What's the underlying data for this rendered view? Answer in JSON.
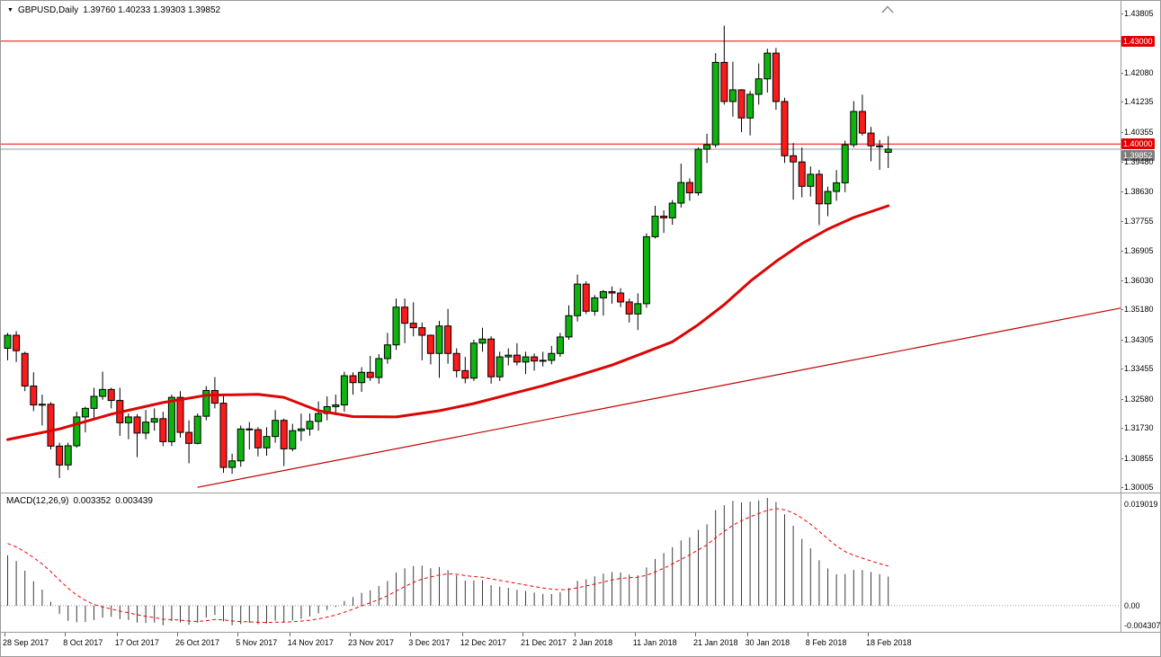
{
  "window": {
    "title_symbol": "GBPUSD,Daily",
    "title_ohlc": "1.39760 1.40233 1.39303 1.39852"
  },
  "colors": {
    "up": "#0eb30e",
    "down": "#fb1b1b",
    "wick": "#000000",
    "ma": "#dd0404",
    "trend": "#c00000",
    "level": "#f40000",
    "bid_line": "#9b9b9b",
    "hist": "#3a3a3a",
    "signal": "#f40000",
    "level_label_bg": "#e00000",
    "bid_label_bg": "#7d7d7d"
  },
  "price_axis": {
    "labels": [
      {
        "text": "1.43805",
        "type": "plain"
      },
      {
        "text": "1.43000",
        "type": "level"
      },
      {
        "text": "1.42080",
        "type": "plain"
      },
      {
        "text": "1.41235",
        "type": "plain"
      },
      {
        "text": "1.40355",
        "type": "plain"
      },
      {
        "text": "1.40000",
        "type": "level"
      },
      {
        "text": "1.39852",
        "type": "bid"
      },
      {
        "text": "1.39480",
        "type": "plain"
      },
      {
        "text": "1.38630",
        "type": "plain"
      },
      {
        "text": "1.37755",
        "type": "plain"
      },
      {
        "text": "1.36905",
        "type": "plain"
      },
      {
        "text": "1.36030",
        "type": "plain"
      },
      {
        "text": "1.35180",
        "type": "plain"
      },
      {
        "text": "1.34305",
        "type": "plain"
      },
      {
        "text": "1.33455",
        "type": "plain"
      },
      {
        "text": "1.32580",
        "type": "plain"
      },
      {
        "text": "1.31730",
        "type": "plain"
      },
      {
        "text": "1.30855",
        "type": "plain"
      },
      {
        "text": "1.30005",
        "type": "plain"
      }
    ]
  },
  "time_axis": {
    "labels": [
      {
        "text": "28 Sep 2017",
        "index": 0
      },
      {
        "text": "8 Oct 2017",
        "index": 7
      },
      {
        "text": "17 Oct 2017",
        "index": 13
      },
      {
        "text": "26 Oct 2017",
        "index": 20
      },
      {
        "text": "5 Nov 2017",
        "index": 27
      },
      {
        "text": "14 Nov 2017",
        "index": 33
      },
      {
        "text": "23 Nov 2017",
        "index": 40
      },
      {
        "text": "3 Dec 2017",
        "index": 47
      },
      {
        "text": "12 Dec 2017",
        "index": 53
      },
      {
        "text": "21 Dec 2017",
        "index": 60
      },
      {
        "text": "2 Jan 2018",
        "index": 66
      },
      {
        "text": "11 Jan 2018",
        "index": 73
      },
      {
        "text": "21 Jan 2018",
        "index": 80
      },
      {
        "text": "30 Jan 2018",
        "index": 86
      },
      {
        "text": "8 Feb 2018",
        "index": 93
      },
      {
        "text": "18 Feb 2018",
        "index": 100
      }
    ]
  },
  "macd": {
    "label": "MACD(12,26,9)",
    "value_main": "0.003352",
    "value_signal": "0.003439",
    "axis_max": "0.019019",
    "axis_zero": "0.00",
    "axis_min": "-0.004307"
  },
  "chart_data": {
    "type": "candlestick",
    "symbol": "GBPUSD",
    "timeframe": "Daily",
    "title": "GBPUSD,Daily 1.39760 1.40233 1.39303 1.39852",
    "price_range": [
      1.30005,
      1.43805
    ],
    "levels": [
      1.43,
      1.4
    ],
    "bid": 1.39852,
    "last_ohlc": {
      "open": 1.3976,
      "high": 1.40233,
      "low": 1.39303,
      "close": 1.39852
    },
    "candles": [
      [
        1.3405,
        1.345,
        1.337,
        1.3443
      ],
      [
        1.3443,
        1.3455,
        1.3365,
        1.3398
      ],
      [
        1.339,
        1.3395,
        1.328,
        1.3295
      ],
      [
        1.3295,
        1.3335,
        1.3222,
        1.324
      ],
      [
        1.324,
        1.327,
        1.318,
        1.3242
      ],
      [
        1.3242,
        1.3248,
        1.311,
        1.312
      ],
      [
        1.312,
        1.313,
        1.3027,
        1.3065
      ],
      [
        1.3065,
        1.313,
        1.305,
        1.3121
      ],
      [
        1.3121,
        1.322,
        1.3115,
        1.3205
      ],
      [
        1.3205,
        1.3235,
        1.316,
        1.323
      ],
      [
        1.323,
        1.329,
        1.32,
        1.3265
      ],
      [
        1.3265,
        1.3337,
        1.3255,
        1.3285
      ],
      [
        1.3285,
        1.329,
        1.323,
        1.3253
      ],
      [
        1.3253,
        1.329,
        1.315,
        1.3188
      ],
      [
        1.3188,
        1.3215,
        1.314,
        1.3205
      ],
      [
        1.3205,
        1.3213,
        1.3088,
        1.3158
      ],
      [
        1.3158,
        1.3225,
        1.314,
        1.319
      ],
      [
        1.319,
        1.323,
        1.3165,
        1.32
      ],
      [
        1.32,
        1.322,
        1.312,
        1.3133
      ],
      [
        1.3133,
        1.327,
        1.312,
        1.3262
      ],
      [
        1.3262,
        1.328,
        1.3145,
        1.316
      ],
      [
        1.316,
        1.3195,
        1.307,
        1.3128
      ],
      [
        1.3128,
        1.3215,
        1.3125,
        1.3207
      ],
      [
        1.3207,
        1.3295,
        1.3195,
        1.3282
      ],
      [
        1.3282,
        1.3321,
        1.323,
        1.3245
      ],
      [
        1.3245,
        1.327,
        1.3042,
        1.3058
      ],
      [
        1.3058,
        1.3098,
        1.3039,
        1.3077
      ],
      [
        1.3077,
        1.318,
        1.306,
        1.317
      ],
      [
        1.317,
        1.319,
        1.311,
        1.3168
      ],
      [
        1.3168,
        1.3175,
        1.309,
        1.3115
      ],
      [
        1.3115,
        1.3175,
        1.3092,
        1.3148
      ],
      [
        1.3148,
        1.3225,
        1.313,
        1.3195
      ],
      [
        1.3195,
        1.32,
        1.3062,
        1.3112
      ],
      [
        1.3112,
        1.3185,
        1.3105,
        1.3165
      ],
      [
        1.3165,
        1.3215,
        1.3135,
        1.317
      ],
      [
        1.317,
        1.3215,
        1.315,
        1.3192
      ],
      [
        1.3192,
        1.325,
        1.3165,
        1.3215
      ],
      [
        1.3215,
        1.3265,
        1.3195,
        1.3235
      ],
      [
        1.3235,
        1.327,
        1.321,
        1.324
      ],
      [
        1.324,
        1.3337,
        1.322,
        1.3325
      ],
      [
        1.3325,
        1.3335,
        1.327,
        1.3305
      ],
      [
        1.3305,
        1.335,
        1.3278,
        1.3335
      ],
      [
        1.3335,
        1.3383,
        1.331,
        1.332
      ],
      [
        1.332,
        1.3388,
        1.3302,
        1.3375
      ],
      [
        1.3375,
        1.345,
        1.336,
        1.3415
      ],
      [
        1.3415,
        1.355,
        1.34,
        1.3525
      ],
      [
        1.3525,
        1.355,
        1.342,
        1.3478
      ],
      [
        1.3478,
        1.3539,
        1.344,
        1.3465
      ],
      [
        1.3465,
        1.348,
        1.337,
        1.3443
      ],
      [
        1.3443,
        1.3445,
        1.3358,
        1.339
      ],
      [
        1.339,
        1.3485,
        1.3319,
        1.347
      ],
      [
        1.347,
        1.352,
        1.336,
        1.339
      ],
      [
        1.339,
        1.3405,
        1.332,
        1.334
      ],
      [
        1.334,
        1.338,
        1.3303,
        1.3318
      ],
      [
        1.3318,
        1.343,
        1.331,
        1.342
      ],
      [
        1.342,
        1.3465,
        1.3395,
        1.3432
      ],
      [
        1.3432,
        1.344,
        1.3302,
        1.3322
      ],
      [
        1.3322,
        1.3395,
        1.331,
        1.338
      ],
      [
        1.338,
        1.3405,
        1.3355,
        1.3385
      ],
      [
        1.3385,
        1.342,
        1.3355,
        1.3365
      ],
      [
        1.3365,
        1.3395,
        1.333,
        1.338
      ],
      [
        1.338,
        1.339,
        1.334,
        1.3368
      ],
      [
        1.3368,
        1.3395,
        1.3352,
        1.337
      ],
      [
        1.337,
        1.3412,
        1.3358,
        1.339
      ],
      [
        1.339,
        1.345,
        1.338,
        1.3438
      ],
      [
        1.3438,
        1.353,
        1.343,
        1.35
      ],
      [
        1.35,
        1.362,
        1.3483,
        1.3592
      ],
      [
        1.3592,
        1.36,
        1.3505,
        1.3513
      ],
      [
        1.3513,
        1.356,
        1.35,
        1.3552
      ],
      [
        1.3552,
        1.3575,
        1.35,
        1.357
      ],
      [
        1.357,
        1.3585,
        1.3535,
        1.3566
      ],
      [
        1.3566,
        1.358,
        1.3525,
        1.354
      ],
      [
        1.354,
        1.355,
        1.348,
        1.3505
      ],
      [
        1.3505,
        1.3565,
        1.3458,
        1.3535
      ],
      [
        1.3535,
        1.374,
        1.3523,
        1.373
      ],
      [
        1.373,
        1.382,
        1.3725,
        1.379
      ],
      [
        1.379,
        1.3807,
        1.3741,
        1.3785
      ],
      [
        1.3785,
        1.3837,
        1.3765,
        1.3828
      ],
      [
        1.3828,
        1.3943,
        1.3815,
        1.3888
      ],
      [
        1.3888,
        1.39,
        1.3835,
        1.3858
      ],
      [
        1.3858,
        1.399,
        1.385,
        1.3985
      ],
      [
        1.3985,
        1.403,
        1.3945,
        1.3998
      ],
      [
        1.3998,
        1.4265,
        1.399,
        1.4238
      ],
      [
        1.4238,
        1.4345,
        1.4115,
        1.4124
      ],
      [
        1.4124,
        1.424,
        1.408,
        1.4158
      ],
      [
        1.4158,
        1.416,
        1.4035,
        1.4076
      ],
      [
        1.4076,
        1.4155,
        1.4025,
        1.4145
      ],
      [
        1.4145,
        1.4235,
        1.4115,
        1.419
      ],
      [
        1.419,
        1.4278,
        1.415,
        1.4265
      ],
      [
        1.4265,
        1.428,
        1.41,
        1.4124
      ],
      [
        1.4124,
        1.4135,
        1.3945,
        1.3966
      ],
      [
        1.3966,
        1.4003,
        1.3838,
        1.3948
      ],
      [
        1.3948,
        1.399,
        1.3845,
        1.3877
      ],
      [
        1.3877,
        1.3935,
        1.3847,
        1.3912
      ],
      [
        1.3912,
        1.3925,
        1.3764,
        1.3826
      ],
      [
        1.3826,
        1.3876,
        1.379,
        1.3862
      ],
      [
        1.3862,
        1.3924,
        1.3835,
        1.3887
      ],
      [
        1.3887,
        1.401,
        1.386,
        1.3998
      ],
      [
        1.3998,
        1.4125,
        1.399,
        1.4095
      ],
      [
        1.4095,
        1.4144,
        1.4025,
        1.4032
      ],
      [
        1.4032,
        1.405,
        1.395,
        1.3995
      ],
      [
        1.3995,
        1.4012,
        1.3925,
        1.3993
      ],
      [
        1.3976,
        1.40233,
        1.39303,
        1.39852
      ]
    ],
    "ma_points": [
      [
        0,
        1.3139
      ],
      [
        6,
        1.317
      ],
      [
        12,
        1.3213
      ],
      [
        18,
        1.3247
      ],
      [
        23,
        1.3268
      ],
      [
        29,
        1.3271
      ],
      [
        32,
        1.3262
      ],
      [
        36,
        1.3223
      ],
      [
        40,
        1.3206
      ],
      [
        45,
        1.3205
      ],
      [
        50,
        1.3223
      ],
      [
        54,
        1.3244
      ],
      [
        58,
        1.327
      ],
      [
        62,
        1.3296
      ],
      [
        66,
        1.3325
      ],
      [
        70,
        1.3356
      ],
      [
        73,
        1.3385
      ],
      [
        77,
        1.3424
      ],
      [
        80,
        1.3474
      ],
      [
        83,
        1.3532
      ],
      [
        86,
        1.36
      ],
      [
        89,
        1.3658
      ],
      [
        92,
        1.371
      ],
      [
        95,
        1.3752
      ],
      [
        98,
        1.3786
      ],
      [
        102,
        1.382
      ]
    ],
    "trendline": [
      [
        22,
        1.3
      ],
      [
        129.3,
        1.3524
      ]
    ],
    "indicator": {
      "name": "MACD",
      "params": [
        12,
        26,
        9
      ],
      "current_main": 0.003352,
      "current_signal": 0.003439
    },
    "macd_scale": {
      "max": 0.019019,
      "min": -0.004307
    },
    "macd_seed": {
      "macd": 0.0096,
      "signal": 0.0115
    }
  }
}
